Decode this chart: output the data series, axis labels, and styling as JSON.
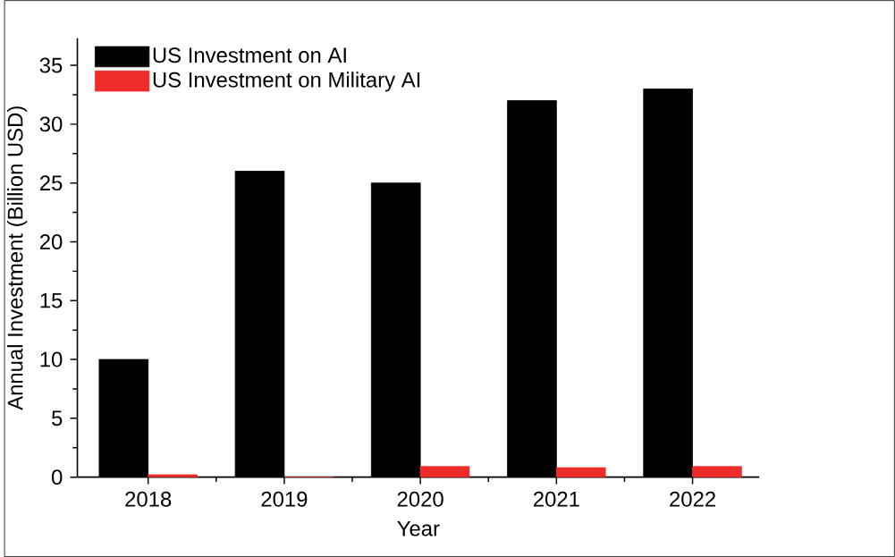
{
  "chart_data": {
    "type": "bar",
    "xlabel": "Year",
    "ylabel": "Annual Investment (Billion USD)",
    "categories": [
      "2018",
      "2019",
      "2020",
      "2021",
      "2022"
    ],
    "series": [
      {
        "name": "US Investment on AI",
        "color": "#000000",
        "values": [
          10,
          26,
          25,
          32,
          33
        ]
      },
      {
        "name": "US Investment on Military AI",
        "color": "#ee2d2b",
        "values": [
          0.2,
          0,
          0.9,
          0.8,
          0.9
        ]
      }
    ],
    "ylim": [
      0,
      37.3
    ],
    "yticks": [
      0,
      5,
      10,
      15,
      20,
      25,
      30,
      35
    ],
    "grid": false,
    "legend": "top left"
  }
}
